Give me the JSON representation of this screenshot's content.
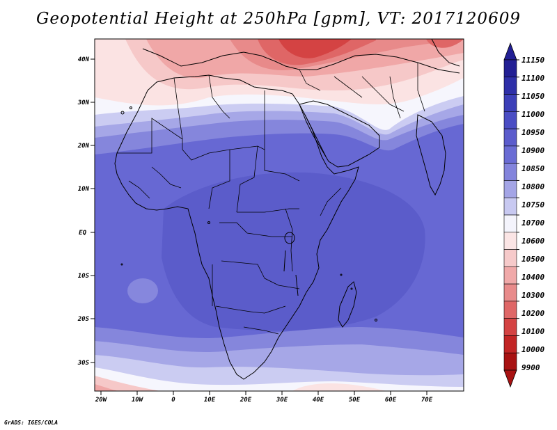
{
  "title": "Geopotential Height at 250hPa [gpm], VT: 2017120609",
  "credit": "GrADS: IGES/COLA",
  "axes": {
    "lat_labels": [
      "40N",
      "30N",
      "20N",
      "10N",
      "EQ",
      "10S",
      "20S",
      "30S"
    ],
    "lon_labels": [
      "20W",
      "10W",
      "0",
      "10E",
      "20E",
      "30E",
      "40E",
      "50E",
      "60E",
      "70E"
    ]
  },
  "colorbar": {
    "levels": [
      "11150",
      "11100",
      "11050",
      "11000",
      "10950",
      "10900",
      "10850",
      "10800",
      "10750",
      "10700",
      "10600",
      "10500",
      "10400",
      "10300",
      "10200",
      "10100",
      "10000",
      "9900"
    ],
    "colors": [
      "#221f94",
      "#2e2fa8",
      "#3c3fb8",
      "#4a4dc4",
      "#5b5ccc",
      "#6a6cd4",
      "#8384dc",
      "#a4a5e6",
      "#c8c9f1",
      "#f4f4fc",
      "#fbe5e5",
      "#f6caca",
      "#f0a9a9",
      "#e88b8b",
      "#df6767",
      "#d44343",
      "#c22525",
      "#a81212"
    ]
  }
}
